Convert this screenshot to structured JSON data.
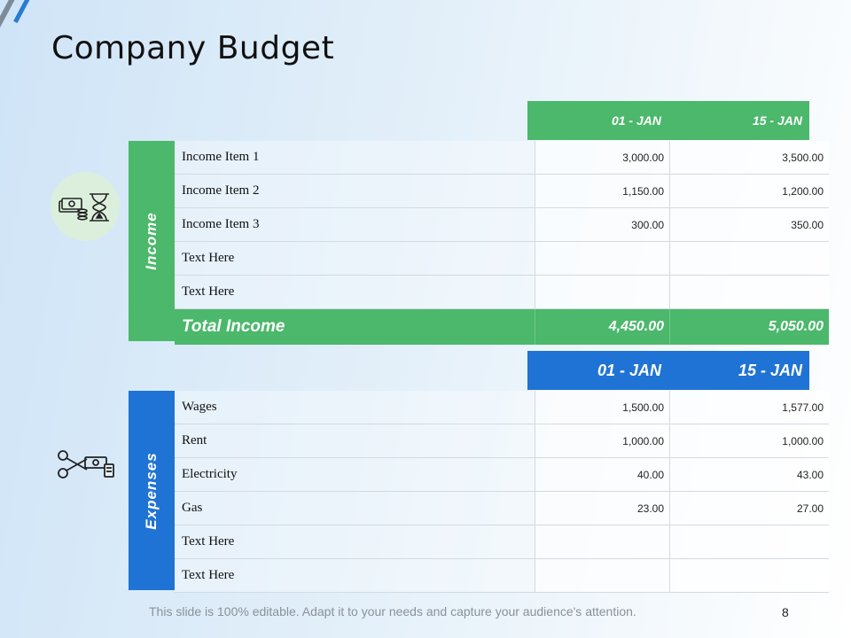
{
  "title": "Company Budget",
  "income": {
    "section_label": "Income",
    "headers": [
      "01 - JAN",
      "15 - JAN"
    ],
    "rows": [
      {
        "name": "Income Item 1",
        "v1": "3,000.00",
        "v2": "3,500.00"
      },
      {
        "name": "Income Item 2",
        "v1": "1,150.00",
        "v2": "1,200.00"
      },
      {
        "name": "Income Item 3",
        "v1": "300.00",
        "v2": "350.00"
      },
      {
        "name": "Text Here",
        "v1": "",
        "v2": ""
      },
      {
        "name": "Text Here",
        "v1": "",
        "v2": ""
      }
    ],
    "total": {
      "name": "Total Income",
      "v1": "4,450.00",
      "v2": "5,050.00"
    }
  },
  "expenses": {
    "section_label": "Expenses",
    "headers": [
      "01 - JAN",
      "15 - JAN"
    ],
    "rows": [
      {
        "name": "Wages",
        "v1": "1,500.00",
        "v2": "1,577.00"
      },
      {
        "name": "Rent",
        "v1": "1,000.00",
        "v2": "1,000.00"
      },
      {
        "name": "Electricity",
        "v1": "40.00",
        "v2": "43.00"
      },
      {
        "name": "Gas",
        "v1": "23.00",
        "v2": "27.00"
      },
      {
        "name": "Text Here",
        "v1": "",
        "v2": ""
      },
      {
        "name": "Text Here",
        "v1": "",
        "v2": ""
      }
    ]
  },
  "icons": {
    "income": "money-hourglass-icon",
    "expense": "scissors-money-icon"
  },
  "colors": {
    "income": "#4bb86b",
    "expense": "#1f73d4"
  },
  "footer": "This slide is 100% editable. Adapt it to your needs and capture your audience's attention.",
  "page_number": "8"
}
